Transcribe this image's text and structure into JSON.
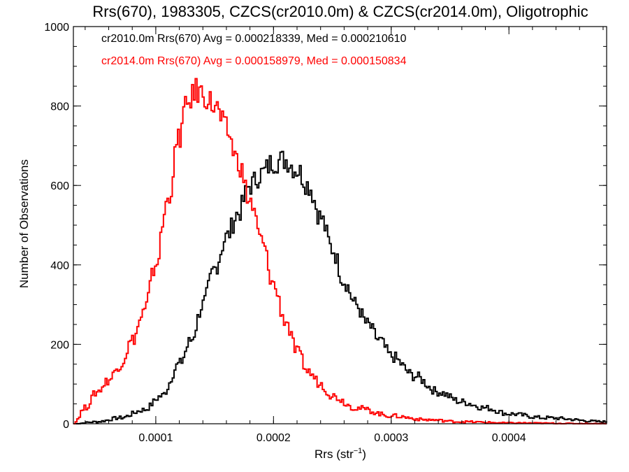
{
  "chart_data": {
    "type": "line",
    "style": "histogram-step",
    "title": "Rrs(670), 1983305, CZCS(cr2010.0m) & CZCS(cr2014.0m), Oligotrophic",
    "xlabel_base": "Rrs (str",
    "xlabel_exp": "−1",
    "xlabel_close": ")",
    "ylabel": "Number of Observations",
    "xlim": [
      3e-05,
      0.000483
    ],
    "ylim": [
      0,
      1000
    ],
    "xticks": [
      {
        "value": 0.0001,
        "label": "0.0001"
      },
      {
        "value": 0.0002,
        "label": "0.0002"
      },
      {
        "value": 0.0003,
        "label": "0.0003"
      },
      {
        "value": 0.0004,
        "label": "0.0004"
      }
    ],
    "yticks": [
      {
        "value": 0,
        "label": "0"
      },
      {
        "value": 200,
        "label": "200"
      },
      {
        "value": 400,
        "label": "400"
      },
      {
        "value": 600,
        "label": "600"
      },
      {
        "value": 800,
        "label": "800"
      },
      {
        "value": 1000,
        "label": "1000"
      }
    ],
    "grid": false,
    "legend_position": "top-left",
    "series": [
      {
        "name": "cr2010.0m",
        "legend": "cr2010.0m Rrs(670) Avg = 0.000218339, Med = 0.000210610",
        "color": "#000000",
        "x": [
          3e-05,
          5e-05,
          7e-05,
          9e-05,
          0.000105,
          0.00012,
          0.00013,
          0.00014,
          0.00015,
          0.00016,
          0.00017,
          0.00018,
          0.00019,
          0.0002,
          0.00021,
          0.00022,
          0.00023,
          0.00024,
          0.00025,
          0.00026,
          0.00027,
          0.00028,
          0.00029,
          0.0003,
          0.00032,
          0.00034,
          0.00036,
          0.00038,
          0.0004,
          0.00043,
          0.000483
        ],
        "y": [
          0,
          5,
          15,
          35,
          70,
          150,
          210,
          300,
          390,
          470,
          530,
          600,
          630,
          660,
          665,
          640,
          600,
          520,
          440,
          360,
          300,
          250,
          210,
          170,
          120,
          80,
          55,
          40,
          25,
          15,
          5
        ]
      },
      {
        "name": "cr2014.0m",
        "legend": "cr2014.0m Rrs(670) Avg = 0.000158979, Med = 0.000150834",
        "color": "#ff0000",
        "x": [
          3e-05,
          4e-05,
          5e-05,
          6e-05,
          7e-05,
          8e-05,
          9e-05,
          0.0001,
          0.00011,
          0.00012,
          0.000125,
          0.00013,
          0.000135,
          0.00014,
          0.00015,
          0.00016,
          0.00017,
          0.00018,
          0.00019,
          0.0002,
          0.00021,
          0.00022,
          0.00023,
          0.00024,
          0.00025,
          0.00027,
          0.0003,
          0.00033,
          0.00036,
          0.0004,
          0.000483
        ],
        "y": [
          0,
          40,
          80,
          110,
          150,
          210,
          280,
          400,
          560,
          720,
          790,
          820,
          840,
          830,
          800,
          740,
          660,
          560,
          460,
          350,
          260,
          180,
          130,
          100,
          70,
          40,
          20,
          10,
          5,
          2,
          0
        ]
      }
    ]
  }
}
